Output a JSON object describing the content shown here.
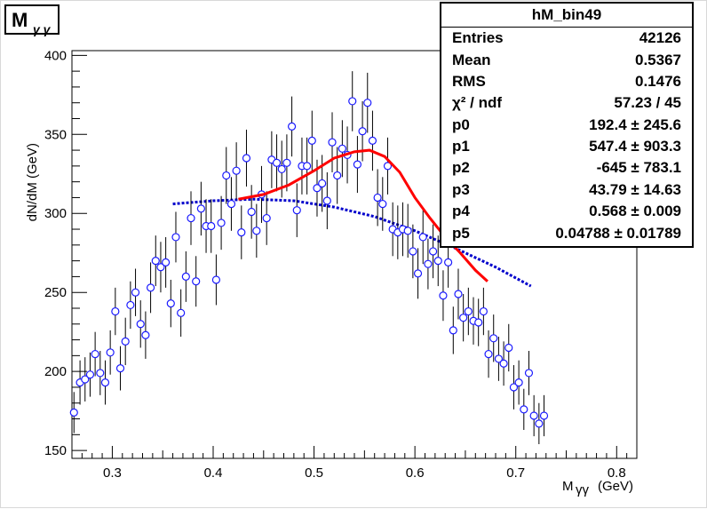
{
  "title": {
    "main": "M",
    "sub": "γ γ"
  },
  "stats": {
    "name": "hM_bin49",
    "rows": [
      {
        "key": "Entries",
        "value": "42126"
      },
      {
        "key": "Mean",
        "value": "0.5367"
      },
      {
        "key": "RMS",
        "value": "0.1476"
      },
      {
        "key": "χ² / ndf",
        "value": "57.23 / 45"
      },
      {
        "key": "p0",
        "value": "192.4 ± 245.6"
      },
      {
        "key": "p1",
        "value": "547.4 ± 903.3"
      },
      {
        "key": "p2",
        "value": "-645 ± 783.1"
      },
      {
        "key": "p3",
        "value": "43.79 ± 14.63"
      },
      {
        "key": "p4",
        "value": "0.568 ± 0.009"
      },
      {
        "key": "p5",
        "value": "0.04788 ± 0.01789"
      }
    ]
  },
  "chart_data": {
    "type": "scatter",
    "xlabel": "M",
    "xlabel_sub": "γγ",
    "xlabel_unit": "(GeV)",
    "ylabel": "dN/dM (GeV)",
    "xlim": [
      0.26,
      0.82
    ],
    "ylim": [
      145,
      403
    ],
    "xticks": [
      "0.3",
      "0.4",
      "0.5",
      "0.6",
      "0.7",
      "0.8"
    ],
    "xtick_values": [
      0.3,
      0.4,
      0.5,
      0.6,
      0.7,
      0.8
    ],
    "yticks": [
      "150",
      "200",
      "250",
      "300",
      "350",
      "400"
    ],
    "ytick_values": [
      150,
      200,
      250,
      300,
      350,
      400
    ],
    "colors": {
      "points": "#1a1aff",
      "signal_fit": "#ff0000",
      "background_fit": "#0000cc"
    },
    "points": [
      {
        "x": 0.262,
        "y": 174,
        "e": 13
      },
      {
        "x": 0.268,
        "y": 193,
        "e": 14
      },
      {
        "x": 0.273,
        "y": 195,
        "e": 14
      },
      {
        "x": 0.278,
        "y": 198,
        "e": 14
      },
      {
        "x": 0.283,
        "y": 211,
        "e": 14
      },
      {
        "x": 0.288,
        "y": 199,
        "e": 14
      },
      {
        "x": 0.293,
        "y": 193,
        "e": 14
      },
      {
        "x": 0.298,
        "y": 212,
        "e": 14
      },
      {
        "x": 0.303,
        "y": 238,
        "e": 15
      },
      {
        "x": 0.308,
        "y": 202,
        "e": 14
      },
      {
        "x": 0.313,
        "y": 219,
        "e": 15
      },
      {
        "x": 0.318,
        "y": 242,
        "e": 15
      },
      {
        "x": 0.323,
        "y": 250,
        "e": 15
      },
      {
        "x": 0.328,
        "y": 230,
        "e": 15
      },
      {
        "x": 0.333,
        "y": 223,
        "e": 15
      },
      {
        "x": 0.338,
        "y": 253,
        "e": 16
      },
      {
        "x": 0.343,
        "y": 270,
        "e": 16
      },
      {
        "x": 0.348,
        "y": 266,
        "e": 16
      },
      {
        "x": 0.353,
        "y": 269,
        "e": 16
      },
      {
        "x": 0.358,
        "y": 243,
        "e": 15
      },
      {
        "x": 0.363,
        "y": 285,
        "e": 16
      },
      {
        "x": 0.368,
        "y": 237,
        "e": 15
      },
      {
        "x": 0.373,
        "y": 260,
        "e": 16
      },
      {
        "x": 0.378,
        "y": 297,
        "e": 17
      },
      {
        "x": 0.383,
        "y": 257,
        "e": 16
      },
      {
        "x": 0.388,
        "y": 303,
        "e": 17
      },
      {
        "x": 0.393,
        "y": 292,
        "e": 17
      },
      {
        "x": 0.398,
        "y": 292,
        "e": 17
      },
      {
        "x": 0.403,
        "y": 258,
        "e": 16
      },
      {
        "x": 0.408,
        "y": 294,
        "e": 17
      },
      {
        "x": 0.413,
        "y": 324,
        "e": 18
      },
      {
        "x": 0.418,
        "y": 306,
        "e": 17
      },
      {
        "x": 0.423,
        "y": 327,
        "e": 18
      },
      {
        "x": 0.428,
        "y": 288,
        "e": 17
      },
      {
        "x": 0.433,
        "y": 335,
        "e": 18
      },
      {
        "x": 0.438,
        "y": 301,
        "e": 17
      },
      {
        "x": 0.443,
        "y": 289,
        "e": 17
      },
      {
        "x": 0.448,
        "y": 312,
        "e": 18
      },
      {
        "x": 0.453,
        "y": 297,
        "e": 17
      },
      {
        "x": 0.458,
        "y": 334,
        "e": 18
      },
      {
        "x": 0.463,
        "y": 332,
        "e": 18
      },
      {
        "x": 0.468,
        "y": 328,
        "e": 18
      },
      {
        "x": 0.473,
        "y": 332,
        "e": 18
      },
      {
        "x": 0.478,
        "y": 355,
        "e": 19
      },
      {
        "x": 0.483,
        "y": 302,
        "e": 17
      },
      {
        "x": 0.488,
        "y": 330,
        "e": 18
      },
      {
        "x": 0.493,
        "y": 330,
        "e": 18
      },
      {
        "x": 0.498,
        "y": 346,
        "e": 19
      },
      {
        "x": 0.503,
        "y": 316,
        "e": 18
      },
      {
        "x": 0.508,
        "y": 319,
        "e": 18
      },
      {
        "x": 0.513,
        "y": 308,
        "e": 18
      },
      {
        "x": 0.518,
        "y": 345,
        "e": 19
      },
      {
        "x": 0.523,
        "y": 324,
        "e": 18
      },
      {
        "x": 0.528,
        "y": 341,
        "e": 18
      },
      {
        "x": 0.533,
        "y": 337,
        "e": 18
      },
      {
        "x": 0.538,
        "y": 371,
        "e": 19
      },
      {
        "x": 0.543,
        "y": 331,
        "e": 18
      },
      {
        "x": 0.548,
        "y": 352,
        "e": 19
      },
      {
        "x": 0.553,
        "y": 370,
        "e": 19
      },
      {
        "x": 0.558,
        "y": 346,
        "e": 19
      },
      {
        "x": 0.563,
        "y": 310,
        "e": 18
      },
      {
        "x": 0.568,
        "y": 306,
        "e": 17
      },
      {
        "x": 0.573,
        "y": 330,
        "e": 18
      },
      {
        "x": 0.578,
        "y": 290,
        "e": 17
      },
      {
        "x": 0.583,
        "y": 288,
        "e": 17
      },
      {
        "x": 0.588,
        "y": 290,
        "e": 17
      },
      {
        "x": 0.593,
        "y": 289,
        "e": 17
      },
      {
        "x": 0.598,
        "y": 276,
        "e": 17
      },
      {
        "x": 0.603,
        "y": 262,
        "e": 16
      },
      {
        "x": 0.608,
        "y": 285,
        "e": 17
      },
      {
        "x": 0.613,
        "y": 268,
        "e": 16
      },
      {
        "x": 0.618,
        "y": 276,
        "e": 17
      },
      {
        "x": 0.623,
        "y": 270,
        "e": 16
      },
      {
        "x": 0.628,
        "y": 248,
        "e": 16
      },
      {
        "x": 0.633,
        "y": 269,
        "e": 16
      },
      {
        "x": 0.638,
        "y": 226,
        "e": 15
      },
      {
        "x": 0.643,
        "y": 249,
        "e": 16
      },
      {
        "x": 0.648,
        "y": 234,
        "e": 15
      },
      {
        "x": 0.653,
        "y": 238,
        "e": 15
      },
      {
        "x": 0.658,
        "y": 232,
        "e": 15
      },
      {
        "x": 0.663,
        "y": 231,
        "e": 15
      },
      {
        "x": 0.668,
        "y": 238,
        "e": 15
      },
      {
        "x": 0.673,
        "y": 211,
        "e": 15
      },
      {
        "x": 0.678,
        "y": 221,
        "e": 15
      },
      {
        "x": 0.683,
        "y": 208,
        "e": 14
      },
      {
        "x": 0.688,
        "y": 205,
        "e": 14
      },
      {
        "x": 0.693,
        "y": 215,
        "e": 15
      },
      {
        "x": 0.698,
        "y": 190,
        "e": 14
      },
      {
        "x": 0.703,
        "y": 193,
        "e": 14
      },
      {
        "x": 0.708,
        "y": 176,
        "e": 13
      },
      {
        "x": 0.713,
        "y": 199,
        "e": 14
      },
      {
        "x": 0.718,
        "y": 172,
        "e": 13
      },
      {
        "x": 0.723,
        "y": 167,
        "e": 13
      },
      {
        "x": 0.728,
        "y": 172,
        "e": 13
      }
    ],
    "fit_signal": [
      {
        "x": 0.425,
        "y": 309
      },
      {
        "x": 0.45,
        "y": 312
      },
      {
        "x": 0.475,
        "y": 318
      },
      {
        "x": 0.5,
        "y": 327
      },
      {
        "x": 0.52,
        "y": 335
      },
      {
        "x": 0.54,
        "y": 339
      },
      {
        "x": 0.555,
        "y": 340
      },
      {
        "x": 0.57,
        "y": 336
      },
      {
        "x": 0.585,
        "y": 326
      },
      {
        "x": 0.6,
        "y": 310
      },
      {
        "x": 0.615,
        "y": 297
      },
      {
        "x": 0.63,
        "y": 285
      },
      {
        "x": 0.645,
        "y": 275
      },
      {
        "x": 0.66,
        "y": 264
      },
      {
        "x": 0.672,
        "y": 257
      }
    ],
    "fit_background": [
      {
        "x": 0.36,
        "y": 306
      },
      {
        "x": 0.4,
        "y": 308
      },
      {
        "x": 0.44,
        "y": 309
      },
      {
        "x": 0.48,
        "y": 308
      },
      {
        "x": 0.52,
        "y": 304
      },
      {
        "x": 0.56,
        "y": 298
      },
      {
        "x": 0.6,
        "y": 289
      },
      {
        "x": 0.64,
        "y": 278
      },
      {
        "x": 0.68,
        "y": 266
      },
      {
        "x": 0.715,
        "y": 254
      }
    ]
  }
}
